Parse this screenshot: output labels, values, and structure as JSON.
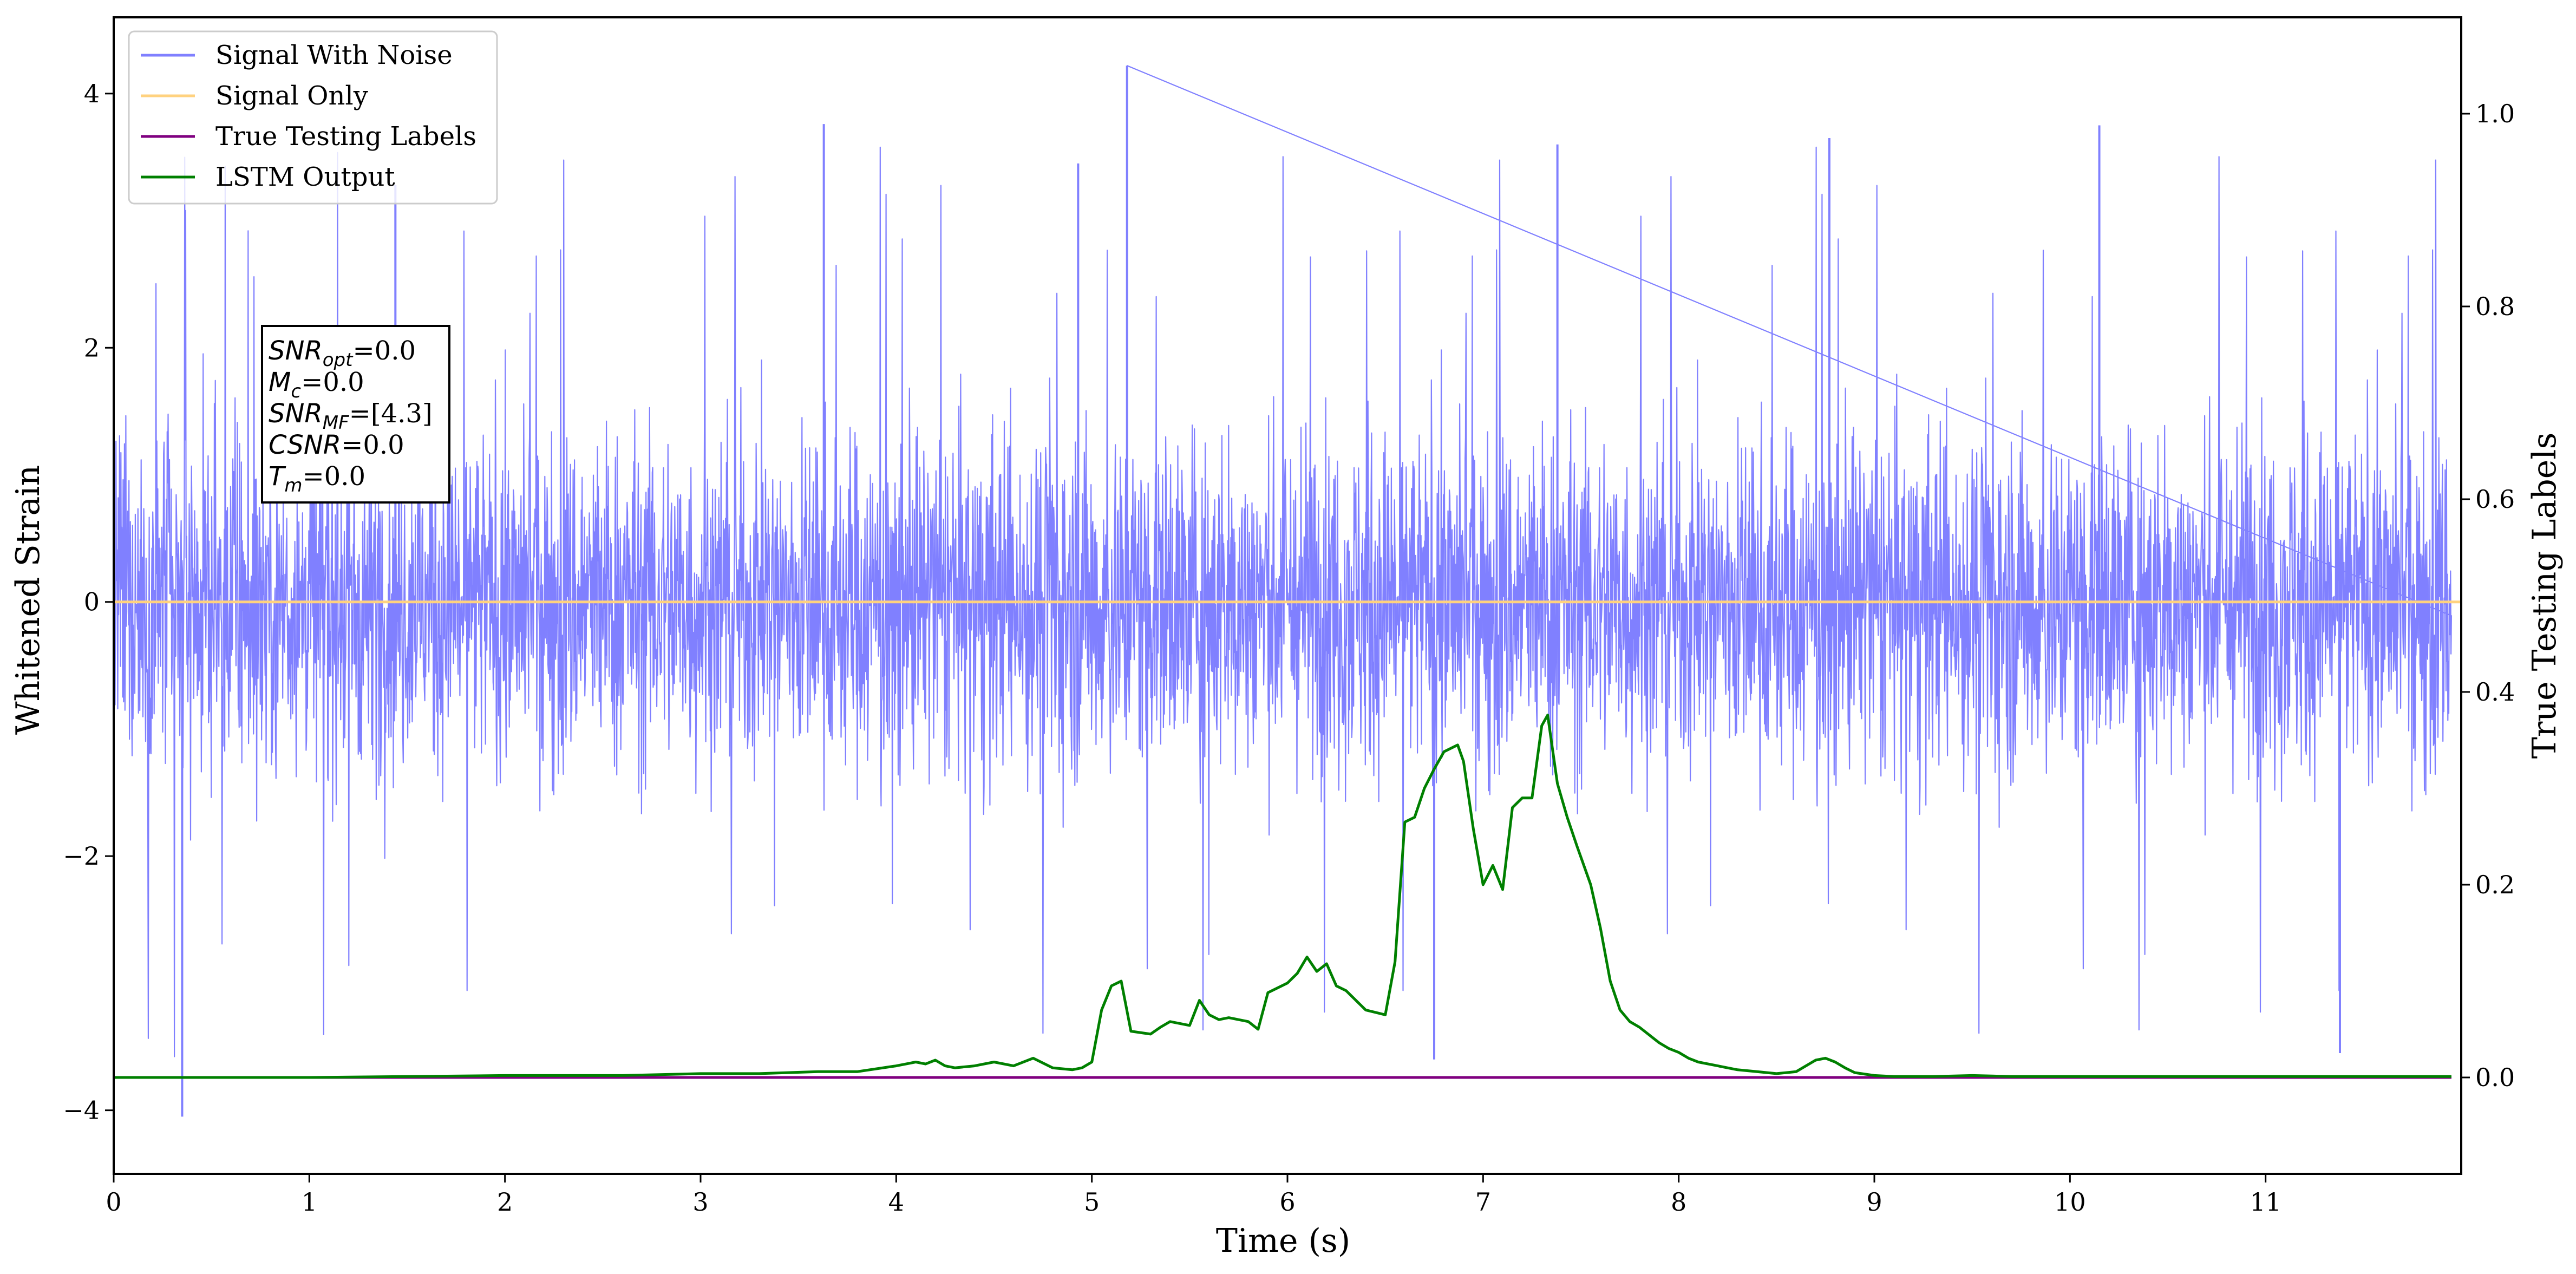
{
  "chart_data": {
    "type": "line",
    "xlabel": "Time (s)",
    "ylabel_left": "Whitened Strain",
    "ylabel_right": "True Testing Labels",
    "xlim": [
      0,
      12.0
    ],
    "ylim_left": [
      -4.5,
      4.6
    ],
    "ylim_right": [
      -0.1,
      1.1
    ],
    "x_ticks": [
      0,
      1,
      2,
      3,
      4,
      5,
      6,
      7,
      8,
      9,
      10,
      11
    ],
    "y_ticks_left": [
      -4,
      -2,
      0,
      2,
      4
    ],
    "y_ticks_right": [
      0.0,
      0.2,
      0.4,
      0.6,
      0.8,
      1.0
    ],
    "y_tick_labels_left": [
      "−4",
      "−2",
      "0",
      "2",
      "4"
    ],
    "y_tick_labels_right": [
      "0.0",
      "0.2",
      "0.4",
      "0.6",
      "0.8",
      "1.0"
    ],
    "grid": false,
    "legend_position": "top-left",
    "series": [
      {
        "name": "Signal With Noise",
        "axis": "left",
        "color": "#8080ff",
        "description_values": "dense noise, amplitude mostly within ±2, peaks to ~4.2 at t≈5.18 and dip to ~-4.05 at t≈0.35",
        "values": []
      },
      {
        "name": "Signal Only",
        "axis": "left",
        "color": "#ffd27f",
        "x": [
          0,
          12.0
        ],
        "values": [
          0,
          0
        ]
      },
      {
        "name": "True Testing Labels",
        "axis": "right",
        "color": "#800080",
        "x": [
          0,
          11.95
        ],
        "values": [
          0,
          0
        ]
      },
      {
        "name": "LSTM Output",
        "axis": "right",
        "color": "#008000",
        "x": [
          0,
          1.0,
          2.0,
          2.6,
          3.0,
          3.3,
          3.6,
          3.8,
          4.0,
          4.05,
          4.1,
          4.15,
          4.2,
          4.25,
          4.3,
          4.4,
          4.5,
          4.6,
          4.7,
          4.8,
          4.9,
          4.95,
          5.0,
          5.05,
          5.1,
          5.15,
          5.2,
          5.3,
          5.35,
          5.4,
          5.5,
          5.55,
          5.6,
          5.65,
          5.7,
          5.8,
          5.85,
          5.9,
          6.0,
          6.05,
          6.1,
          6.15,
          6.2,
          6.25,
          6.3,
          6.4,
          6.5,
          6.55,
          6.6,
          6.65,
          6.7,
          6.75,
          6.8,
          6.87,
          6.9,
          6.95,
          7.0,
          7.05,
          7.1,
          7.15,
          7.2,
          7.25,
          7.3,
          7.33,
          7.38,
          7.43,
          7.48,
          7.55,
          7.6,
          7.65,
          7.7,
          7.75,
          7.8,
          7.85,
          7.9,
          7.95,
          8.0,
          8.05,
          8.1,
          8.2,
          8.3,
          8.4,
          8.5,
          8.6,
          8.7,
          8.75,
          8.8,
          8.85,
          8.9,
          9.0,
          9.1,
          9.3,
          9.5,
          9.7,
          10.0,
          10.5,
          11.0,
          11.5,
          11.95
        ],
        "values": [
          0,
          0,
          0.002,
          0.002,
          0.004,
          0.004,
          0.006,
          0.006,
          0.012,
          0.014,
          0.016,
          0.014,
          0.018,
          0.012,
          0.01,
          0.012,
          0.016,
          0.012,
          0.02,
          0.01,
          0.008,
          0.01,
          0.016,
          0.07,
          0.095,
          0.1,
          0.048,
          0.045,
          0.052,
          0.058,
          0.054,
          0.08,
          0.065,
          0.06,
          0.062,
          0.058,
          0.05,
          0.088,
          0.098,
          0.108,
          0.125,
          0.11,
          0.118,
          0.095,
          0.09,
          0.07,
          0.065,
          0.12,
          0.265,
          0.27,
          0.3,
          0.32,
          0.338,
          0.345,
          0.328,
          0.258,
          0.2,
          0.22,
          0.195,
          0.28,
          0.29,
          0.29,
          0.365,
          0.376,
          0.305,
          0.27,
          0.24,
          0.2,
          0.155,
          0.1,
          0.07,
          0.058,
          0.052,
          0.044,
          0.036,
          0.03,
          0.026,
          0.02,
          0.016,
          0.012,
          0.008,
          0.006,
          0.004,
          0.006,
          0.018,
          0.02,
          0.016,
          0.01,
          0.005,
          0.002,
          0.001,
          0.001,
          0.002,
          0.001,
          0.001,
          0.001,
          0.001,
          0.001,
          0.001
        ]
      }
    ],
    "annotation_lines": [
      {
        "base": "SNR",
        "sub": "opt",
        "rest": "=0.0"
      },
      {
        "base": "M",
        "sub": "c",
        "rest": "=0.0"
      },
      {
        "base": "SNR",
        "sub": "MF",
        "rest": "=[4.3]"
      },
      {
        "base": "CSNR",
        "sub": "",
        "rest": "=0.0"
      },
      {
        "base": "T",
        "sub": "m",
        "rest": "=0.0"
      }
    ]
  }
}
